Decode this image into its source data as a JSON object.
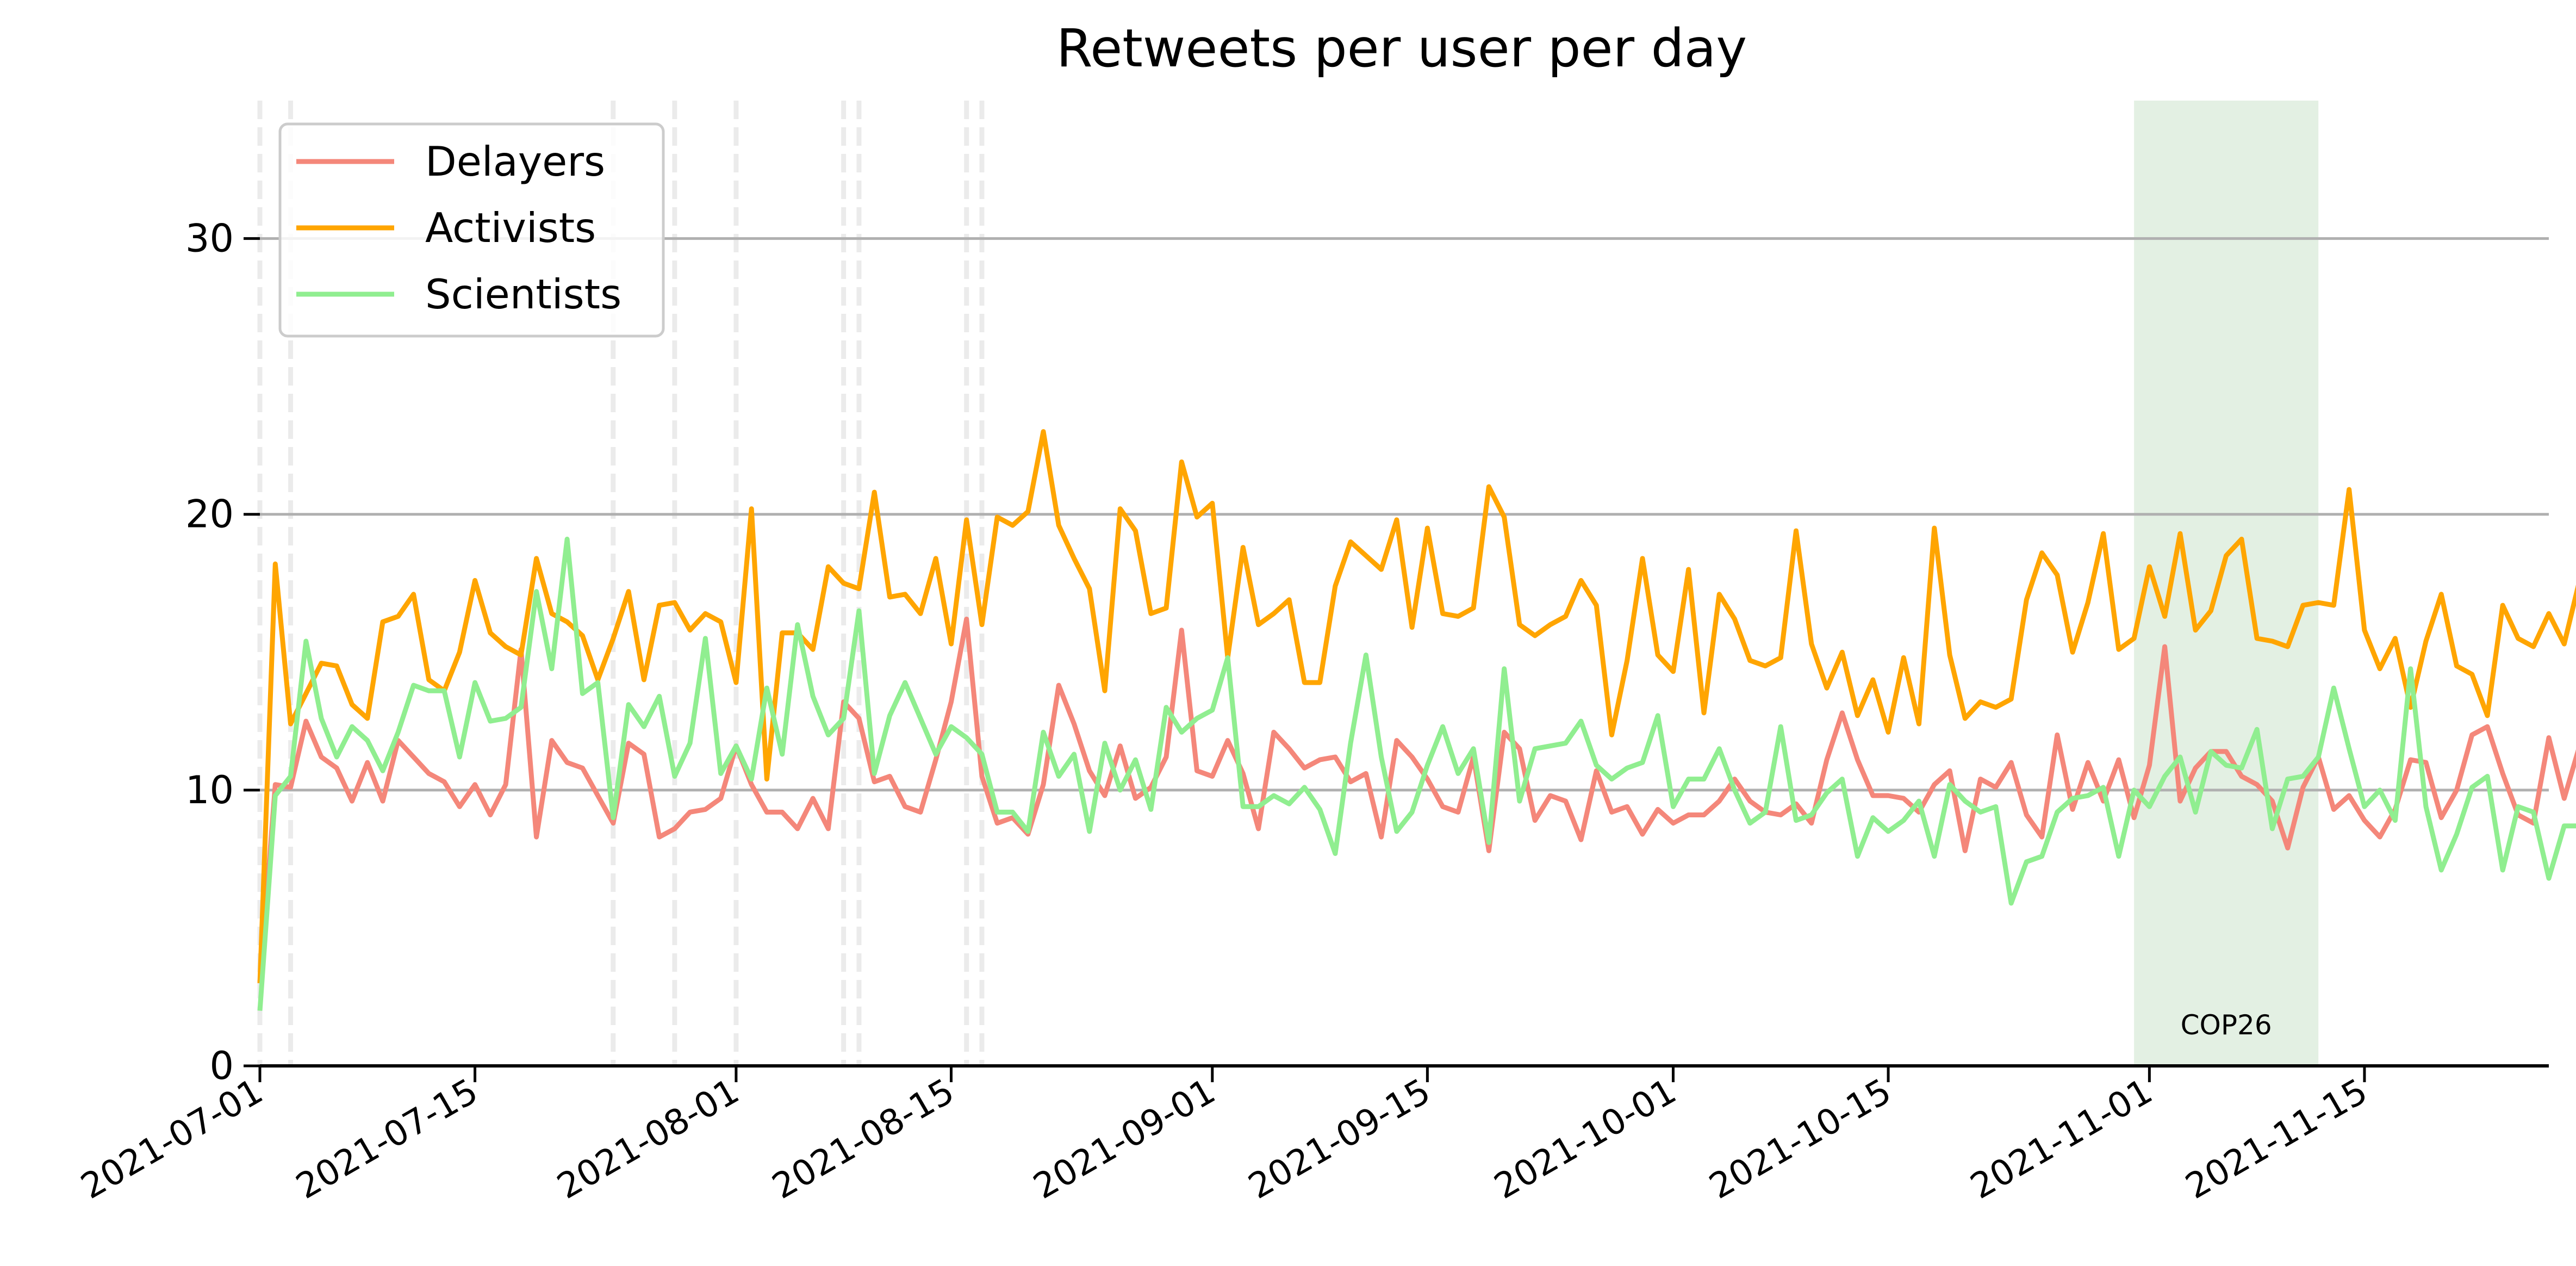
{
  "chart_data": {
    "type": "line",
    "title": "Retweets per user per day",
    "xlabel": "",
    "ylabel": "",
    "x_start": "2021-07-01",
    "x_end": "2021-11-27",
    "ylim": [
      0,
      35
    ],
    "yticks": [
      0,
      10,
      20,
      30
    ],
    "xticks": [
      "2021-07-01",
      "2021-07-15",
      "2021-08-01",
      "2021-08-15",
      "2021-09-01",
      "2021-09-15",
      "2021-10-01",
      "2021-10-15",
      "2021-11-01",
      "2021-11-15"
    ],
    "grid": "horizontal",
    "legend_position": "top-left",
    "event_dates": [
      "2021-07-01",
      "2021-07-03",
      "2021-07-24",
      "2021-07-28",
      "2021-08-01",
      "2021-08-08",
      "2021-08-09",
      "2021-08-16",
      "2021-08-17"
    ],
    "highlight": {
      "label": "COP26",
      "start": "2021-10-31",
      "end": "2021-11-12",
      "color": "#e3f0e3",
      "label_color": "#008000"
    },
    "series": [
      {
        "name": "Delayers",
        "color": "#f4877a",
        "values": [
          3,
          10.2,
          10.1,
          12.5,
          11.2,
          10.8,
          9.6,
          11,
          9.6,
          11.8,
          11.2,
          10.6,
          10.3,
          9.4,
          10.2,
          9.1,
          10.2,
          15.1,
          8.3,
          11.8,
          11,
          10.8,
          9.8,
          8.8,
          11.7,
          11.3,
          8.3,
          8.6,
          9.2,
          9.3,
          9.7,
          11.6,
          10.2,
          9.2,
          9.2,
          8.6,
          9.7,
          8.6,
          13.2,
          12.6,
          10.3,
          10.5,
          9.4,
          9.2,
          11.1,
          13.2,
          16.2,
          10.5,
          8.8,
          9,
          8.4,
          10.2,
          13.8,
          12.4,
          10.7,
          9.8,
          11.6,
          9.7,
          10.1,
          11.2,
          15.8,
          10.7,
          10.5,
          11.8,
          10.6,
          8.6,
          12.1,
          11.5,
          10.8,
          11.1,
          11.2,
          10.3,
          10.6,
          8.3,
          11.8,
          11.2,
          10.4,
          9.4,
          9.2,
          11.2,
          7.8,
          12.1,
          11.5,
          8.9,
          9.8,
          9.6,
          8.2,
          10.7,
          9.2,
          9.4,
          8.4,
          9.3,
          8.8,
          9.1,
          9.1,
          9.6,
          10.4,
          9.6,
          9.2,
          9.1,
          9.5,
          8.8,
          11.1,
          12.8,
          11.1,
          9.8,
          9.8,
          9.7,
          9.2,
          10.2,
          10.7,
          7.8,
          10.4,
          10.1,
          11,
          9.1,
          8.3,
          12,
          9.3,
          11,
          9.6,
          11.1,
          9,
          10.9,
          15.2,
          9.6,
          10.8,
          11.4,
          11.4,
          10.5,
          10.2,
          9.6,
          7.9,
          10.1,
          11.2,
          9.3,
          9.8,
          8.9,
          8.3,
          9.3,
          11.1,
          11,
          9,
          10,
          12,
          12.3,
          10.6,
          9.1,
          8.8,
          11.9,
          9.7,
          11.6,
          12.4,
          9.3
        ]
      },
      {
        "name": "Activists",
        "color": "#ffa500",
        "values": [
          3,
          18.2,
          12.4,
          13.5,
          14.6,
          14.5,
          13.1,
          12.6,
          16.1,
          16.3,
          17.1,
          14,
          13.6,
          15,
          17.6,
          15.7,
          15.2,
          14.9,
          18.4,
          16.4,
          16.1,
          15.6,
          14,
          15.5,
          17.2,
          14,
          16.7,
          16.8,
          15.8,
          16.4,
          16.1,
          13.9,
          20.2,
          10.4,
          15.7,
          15.7,
          15.1,
          18.1,
          17.5,
          17.3,
          20.8,
          17,
          17.1,
          16.4,
          18.4,
          15.3,
          19.8,
          16,
          19.9,
          19.6,
          20.1,
          23,
          19.6,
          18.4,
          17.3,
          13.6,
          20.2,
          19.4,
          16.4,
          16.6,
          21.9,
          19.9,
          20.4,
          14.8,
          18.8,
          16,
          16.4,
          16.9,
          13.9,
          13.9,
          17.4,
          19,
          18.5,
          18,
          19.8,
          15.9,
          19.5,
          16.4,
          16.3,
          16.6,
          21,
          19.9,
          16,
          15.6,
          16,
          16.3,
          17.6,
          16.7,
          12,
          14.7,
          18.4,
          14.9,
          14.3,
          18,
          12.8,
          17.1,
          16.2,
          14.7,
          14.5,
          14.8,
          19.4,
          15.3,
          13.7,
          15,
          12.7,
          14,
          12.1,
          14.8,
          12.4,
          19.5,
          14.9,
          12.6,
          13.2,
          13,
          13.3,
          16.9,
          18.6,
          17.8,
          15,
          16.8,
          19.3,
          15.1,
          15.5,
          18.1,
          16.3,
          19.3,
          15.8,
          16.5,
          18.5,
          19.1,
          15.5,
          15.4,
          15.2,
          16.7,
          16.8,
          16.7,
          20.9,
          15.8,
          14.4,
          15.5,
          13,
          15.4,
          17.1,
          14.5,
          14.2,
          12.7,
          16.7,
          15.5,
          15.2,
          16.4,
          15.3,
          17.6,
          13.3
        ]
      },
      {
        "name": "Scientists",
        "color": "#90ee90",
        "values": [
          2,
          9.8,
          10.5,
          15.4,
          12.6,
          11.2,
          12.3,
          11.8,
          10.7,
          12.1,
          13.8,
          13.6,
          13.6,
          11.2,
          13.9,
          12.5,
          12.6,
          13,
          17.2,
          14.4,
          19.1,
          13.5,
          13.9,
          9,
          13.1,
          12.3,
          13.4,
          10.5,
          11.7,
          15.5,
          10.6,
          11.6,
          10.4,
          13.7,
          11.3,
          16,
          13.4,
          12,
          12.6,
          16.5,
          10.6,
          12.7,
          13.9,
          12.6,
          11.3,
          12.3,
          11.9,
          11.3,
          9.2,
          9.2,
          8.5,
          12.1,
          10.5,
          11.3,
          8.5,
          11.7,
          10,
          11.1,
          9.3,
          13,
          12.1,
          12.6,
          12.9,
          14.8,
          9.4,
          9.4,
          9.8,
          9.5,
          10.1,
          9.3,
          7.7,
          11.7,
          14.9,
          11.2,
          8.5,
          9.2,
          10.9,
          12.3,
          10.6,
          11.5,
          8.1,
          14.4,
          9.6,
          11.5,
          11.6,
          11.7,
          12.5,
          10.9,
          10.4,
          10.8,
          11,
          12.7,
          9.4,
          10.4,
          10.4,
          11.5,
          10,
          8.8,
          9.2,
          12.3,
          8.9,
          9.1,
          9.9,
          10.4,
          7.6,
          9,
          8.5,
          8.9,
          9.6,
          7.6,
          10.2,
          9.6,
          9.2,
          9.4,
          5.9,
          7.4,
          7.6,
          9.2,
          9.7,
          9.8,
          10.1,
          7.6,
          10,
          9.4,
          10.5,
          11.2,
          9.2,
          11.4,
          10.9,
          10.8,
          12.2,
          8.6,
          10.4,
          10.5,
          11.2,
          13.7,
          11.5,
          9.4,
          10,
          8.9,
          14.4,
          9.4,
          7.1,
          8.4,
          10.1,
          10.5,
          7.1,
          9.4,
          9.2,
          6.8,
          8.7,
          8.7
        ]
      }
    ]
  }
}
